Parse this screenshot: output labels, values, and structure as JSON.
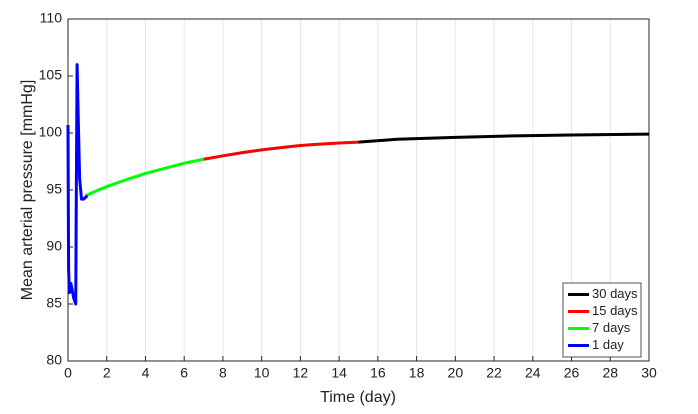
{
  "chart_data": {
    "type": "line",
    "xlabel": "Time (day)",
    "ylabel": "Mean arterial pressure [mmHg]",
    "xlim": [
      0,
      30
    ],
    "ylim": [
      80,
      110
    ],
    "xticks": [
      0,
      2,
      4,
      6,
      8,
      10,
      12,
      14,
      16,
      18,
      20,
      22,
      24,
      26,
      28,
      30
    ],
    "yticks": [
      80,
      85,
      90,
      95,
      100,
      105,
      110
    ],
    "grid": "x",
    "legend": "lower right",
    "series": [
      {
        "name": "30 days",
        "color": "#000000",
        "x": [
          15,
          17,
          20,
          23,
          26,
          30
        ],
        "values": [
          99.2,
          99.45,
          99.62,
          99.75,
          99.83,
          99.9
        ]
      },
      {
        "name": "15 days",
        "color": "#ff0000",
        "x": [
          7,
          8,
          9,
          10,
          11,
          12,
          13,
          14,
          15
        ],
        "values": [
          97.7,
          98.0,
          98.28,
          98.52,
          98.72,
          98.9,
          99.02,
          99.12,
          99.2
        ]
      },
      {
        "name": "7 days",
        "color": "#00ff00",
        "x": [
          0.9,
          1.5,
          2,
          3,
          4,
          5,
          6,
          7
        ],
        "values": [
          94.5,
          94.95,
          95.3,
          95.9,
          96.45,
          96.9,
          97.35,
          97.7
        ]
      },
      {
        "name": "1 day",
        "color": "#0000ff",
        "x": [
          0,
          0.03,
          0.08,
          0.15,
          0.3,
          0.4,
          0.43,
          0.47,
          0.52,
          0.6,
          0.7,
          0.8,
          1.0
        ],
        "values": [
          100.7,
          88,
          86,
          86.8,
          85.5,
          85,
          95,
          106,
          102,
          96,
          94.2,
          94.2,
          94.5
        ]
      }
    ]
  }
}
